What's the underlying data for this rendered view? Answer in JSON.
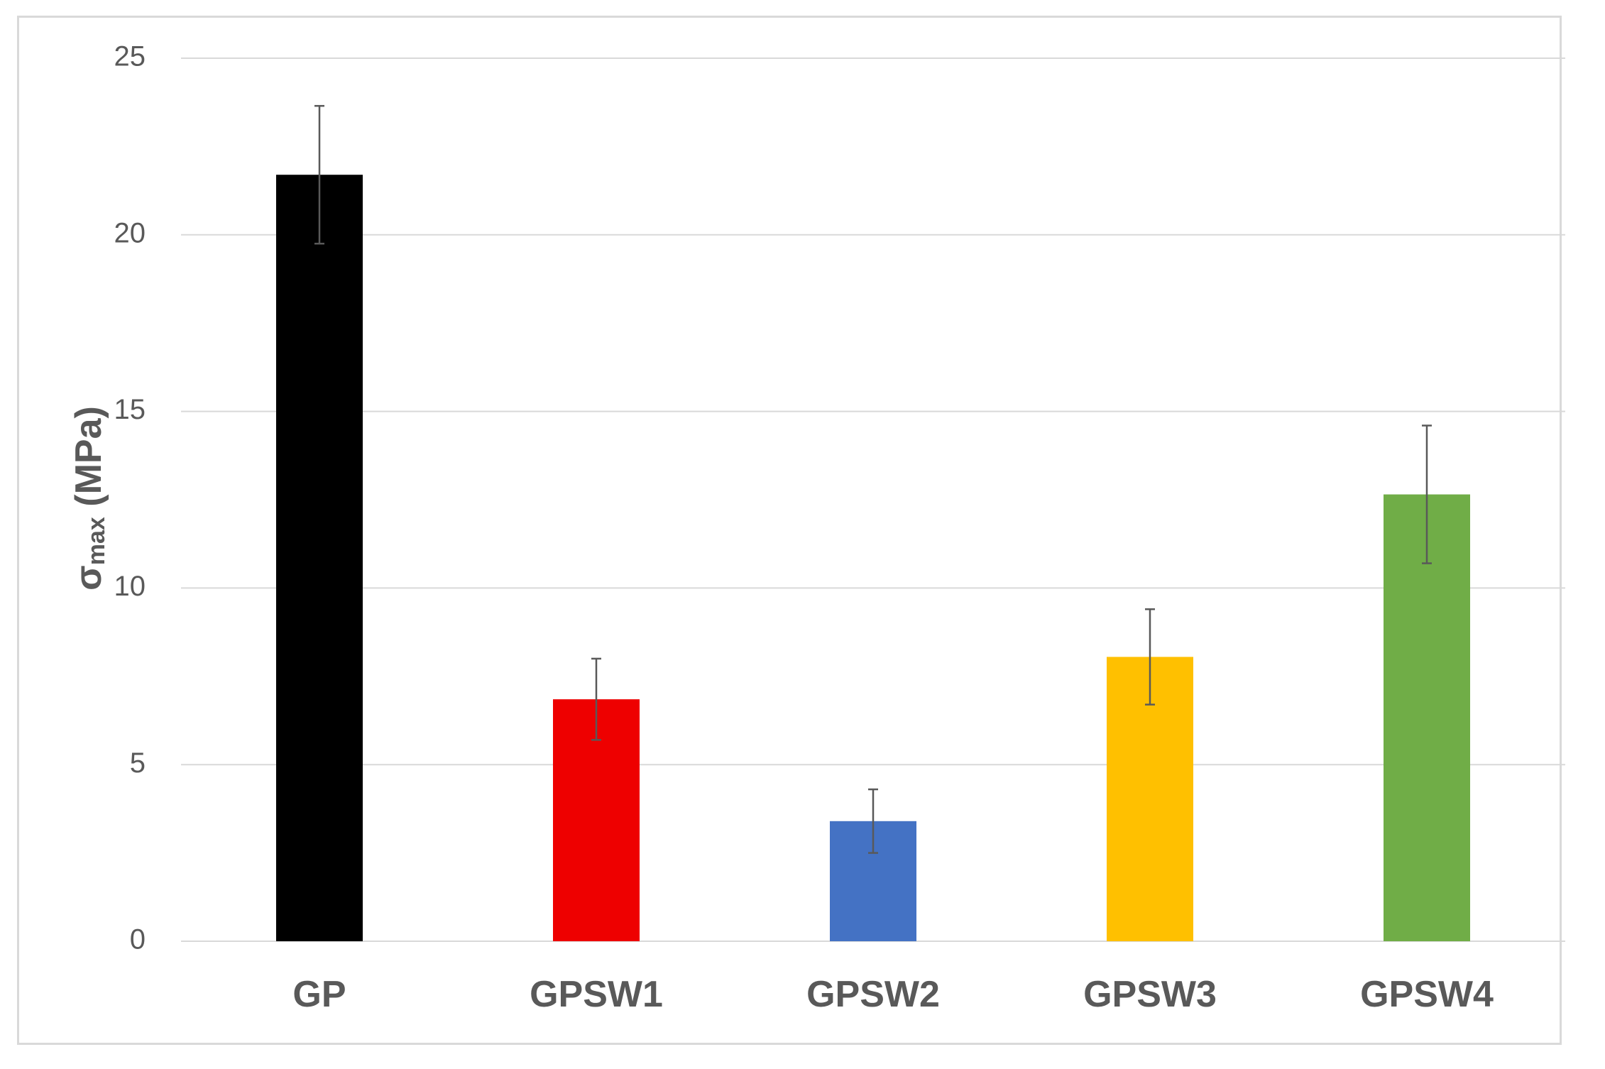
{
  "chart_data": {
    "type": "bar",
    "title": "",
    "xlabel": "",
    "ylabel": {
      "symbol": "σ",
      "subscript": "max",
      "unit": " (MPa)"
    },
    "categories": [
      "GP",
      "GPSW1",
      "GPSW2",
      "GPSW3",
      "GPSW4"
    ],
    "values": [
      21.7,
      6.85,
      3.4,
      8.05,
      12.65
    ],
    "errors": [
      1.95,
      1.15,
      0.9,
      1.35,
      1.95
    ],
    "colors": [
      "#000000",
      "#ee0000",
      "#4472c4",
      "#ffc000",
      "#70ad47"
    ],
    "ylim": [
      0,
      25
    ],
    "yticks": [
      0,
      5,
      10,
      15,
      20,
      25
    ],
    "grid": true,
    "legend": "none",
    "error_bar_color": "#595959",
    "gridline_color": "#d9d9d9"
  }
}
